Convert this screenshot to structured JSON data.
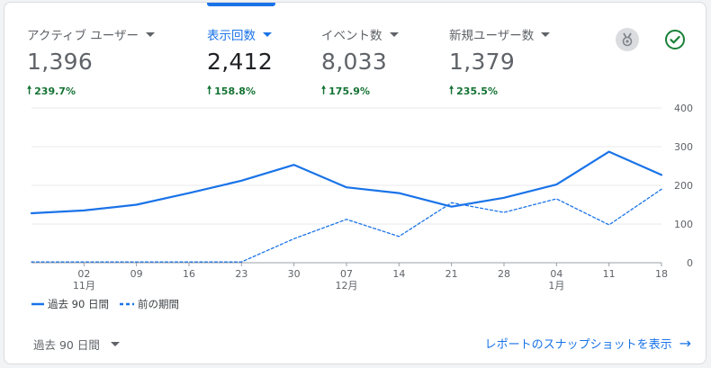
{
  "metrics": [
    {
      "label": "アクティブ ユーザー",
      "value": "1,396",
      "change": "239.7%"
    },
    {
      "label": "表示回数",
      "value": "2,412",
      "change": "158.8%"
    },
    {
      "label": "イベント数",
      "value": "8,033",
      "change": "175.9%"
    },
    {
      "label": "新規ユーザー数",
      "value": "1,379",
      "change": "235.5%"
    }
  ],
  "icons": {
    "insights": "medal-icon",
    "status": "check-circle-icon"
  },
  "legend": {
    "current": "過去 90 日間",
    "previous": "前の期間"
  },
  "date_range": "過去 90 日間",
  "snapshot_link": "レポートのスナップショットを表示",
  "colors": {
    "accent": "#1a73e8",
    "positive": "#137333",
    "status_green": "#188038"
  },
  "chart_data": {
    "type": "line",
    "x": [
      "",
      "02",
      "09",
      "16",
      "23",
      "30",
      "07",
      "14",
      "21",
      "28",
      "04",
      "11",
      "18"
    ],
    "x_month_labels": [
      {
        "tick": "02",
        "label": "11月"
      },
      {
        "tick": "07",
        "label": "12月"
      },
      {
        "tick": "04",
        "label": "1月"
      }
    ],
    "series": [
      {
        "name": "過去 90 日間",
        "style": "solid",
        "color": "#1a73e8",
        "values": [
          128,
          135,
          150,
          180,
          212,
          253,
          195,
          180,
          145,
          168,
          202,
          287,
          227
        ]
      },
      {
        "name": "前の期間",
        "style": "dashed",
        "color": "#1a73e8",
        "values": [
          2,
          2,
          2,
          2,
          2,
          62,
          112,
          68,
          155,
          130,
          165,
          98,
          190
        ]
      }
    ],
    "yticks": [
      0,
      100,
      200,
      300,
      400
    ],
    "ylim": [
      0,
      400
    ],
    "grid": true,
    "y_axis_side": "right",
    "legend_position": "bottom-left"
  }
}
